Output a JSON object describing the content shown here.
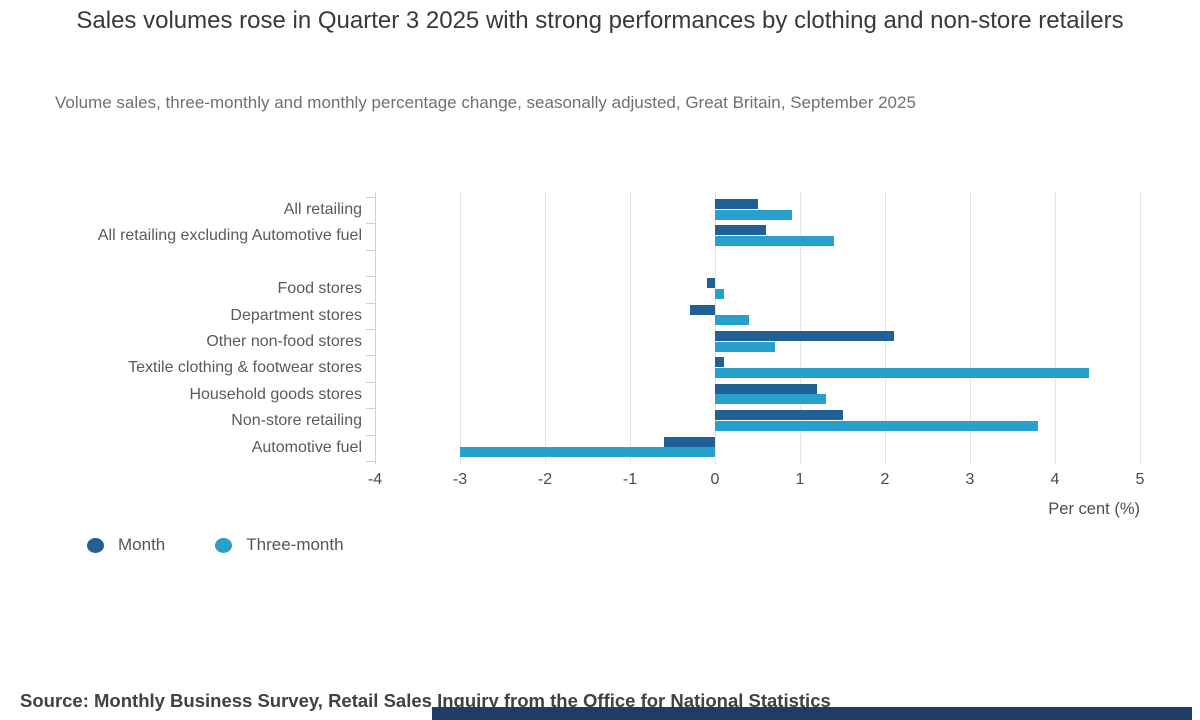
{
  "header": {
    "title": "Sales volumes rose in Quarter 3 2025 with strong performances by clothing and non-store retailers",
    "subtitle": "Volume sales, three-monthly and monthly percentage change, seasonally adjusted, Great Britain, September 2025"
  },
  "chart_data": {
    "type": "bar",
    "orientation": "horizontal",
    "title": "Sales volumes rose in Quarter 3 2025 with strong performances by clothing and non-store retailers",
    "xlabel": "Per cent (%)",
    "ylabel": "",
    "xlim": [
      -4,
      5
    ],
    "xticks": [
      -4,
      -3,
      -2,
      -1,
      0,
      1,
      2,
      3,
      4,
      5
    ],
    "grid": true,
    "legend_position": "bottom-left",
    "categories": [
      "All retailing",
      "All retailing excluding Automotive fuel",
      "",
      "Food stores",
      "Department stores",
      "Other non-food stores",
      "Textile clothing & footwear stores",
      "Household goods stores",
      "Non-store retailing",
      "Automotive fuel"
    ],
    "series": [
      {
        "name": "Month",
        "color": "#206095",
        "values": [
          0.5,
          0.6,
          null,
          -0.1,
          -0.3,
          2.1,
          0.1,
          1.2,
          1.5,
          -0.6
        ]
      },
      {
        "name": "Three-month",
        "color": "#27a0cc",
        "values": [
          0.9,
          1.4,
          null,
          0.1,
          0.4,
          0.7,
          4.4,
          1.3,
          3.8,
          -3.0
        ]
      }
    ]
  },
  "footer": {
    "source": "Source: Monthly Business Survey, Retail Sales Inquiry from the Office for National Statistics",
    "bottom_bar_color": "#1e3c64"
  }
}
